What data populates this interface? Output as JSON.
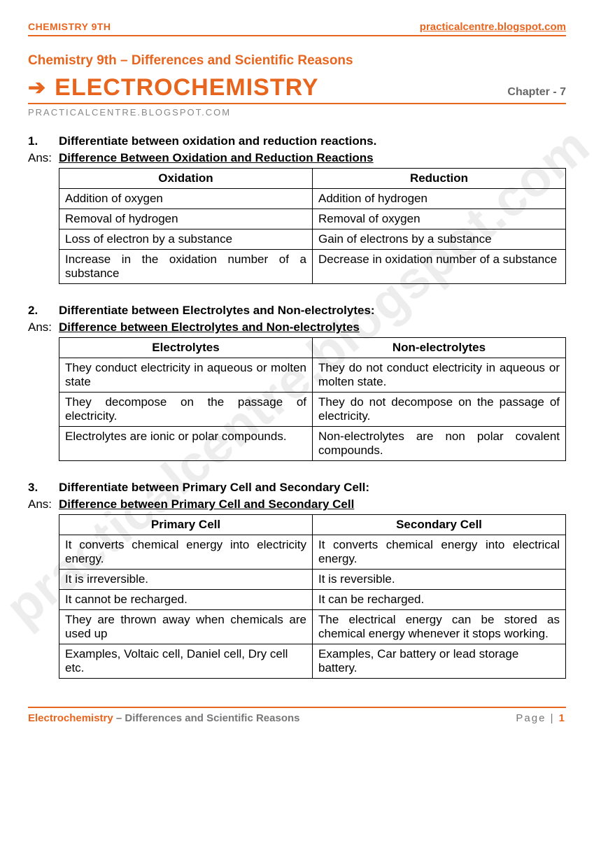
{
  "colors": {
    "accent": "#e8651f",
    "grey": "#777777",
    "border": "#000000",
    "bg": "#ffffff"
  },
  "header": {
    "left": "CHEMISTRY 9TH",
    "right": "practicalcentre.blogspot.com"
  },
  "subtitle": "Chemistry 9th – Differences and Scientific Reasons",
  "title": "ELECTROCHEMISTRY",
  "chapter": "Chapter - 7",
  "siteline": "PRACTICALCENTRE.BLOGSPOT.COM",
  "watermark": "practicalcentre.blogspot.com",
  "questions": [
    {
      "num": "1.",
      "q": "Differentiate between oxidation and reduction reactions.",
      "ans_label": "Ans:",
      "ans_heading": "Difference Between Oxidation and Reduction Reactions",
      "table": {
        "headers": [
          "Oxidation",
          "Reduction"
        ],
        "rows": [
          [
            "Addition of oxygen",
            "Addition of hydrogen"
          ],
          [
            "Removal of hydrogen",
            "Removal of oxygen"
          ],
          [
            "Loss of electron by a substance",
            "Gain of electrons by a substance"
          ],
          [
            "Increase in the oxidation number of a substance",
            "Decrease in oxidation number of a substance"
          ]
        ],
        "justify_rows": [
          3
        ]
      }
    },
    {
      "num": "2.",
      "q": "Differentiate between Electrolytes and Non-electrolytes:",
      "ans_label": "Ans:",
      "ans_heading": "Difference between Electrolytes and Non-electrolytes",
      "table": {
        "headers": [
          "Electrolytes",
          "Non-electrolytes"
        ],
        "rows": [
          [
            "They conduct electricity in aqueous or molten state",
            "They do not conduct electricity in aqueous or molten state."
          ],
          [
            "They decompose on the passage of electricity.",
            "They do not decompose on the passage of electricity."
          ],
          [
            "Electrolytes are ionic or polar compounds.",
            "Non-electrolytes are non polar covalent compounds."
          ]
        ],
        "justify_rows": [
          0,
          1,
          2
        ]
      }
    },
    {
      "num": "3.",
      "q": "Differentiate between Primary Cell and Secondary Cell:",
      "ans_label": "Ans:",
      "ans_heading": "Difference between Primary Cell and Secondary Cell",
      "table": {
        "headers": [
          "Primary Cell",
          "Secondary Cell"
        ],
        "rows": [
          [
            "It converts chemical energy into electricity energy.",
            "It converts chemical energy into electrical energy."
          ],
          [
            "It is irreversible.",
            "It is reversible."
          ],
          [
            "It cannot be recharged.",
            "It can be recharged."
          ],
          [
            "They are thrown away when chemicals are used up",
            "The electrical energy can be stored as chemical energy whenever it stops working."
          ],
          [
            "Examples, Voltaic cell, Daniel cell, Dry cell etc.",
            "Examples, Car battery or lead storage battery."
          ]
        ],
        "justify_rows": [
          0,
          3
        ]
      }
    }
  ],
  "footer": {
    "topic": "Electrochemistry",
    "suffix": " – Differences and Scientific Reasons",
    "page_label": "Page | ",
    "page_num": "1"
  }
}
